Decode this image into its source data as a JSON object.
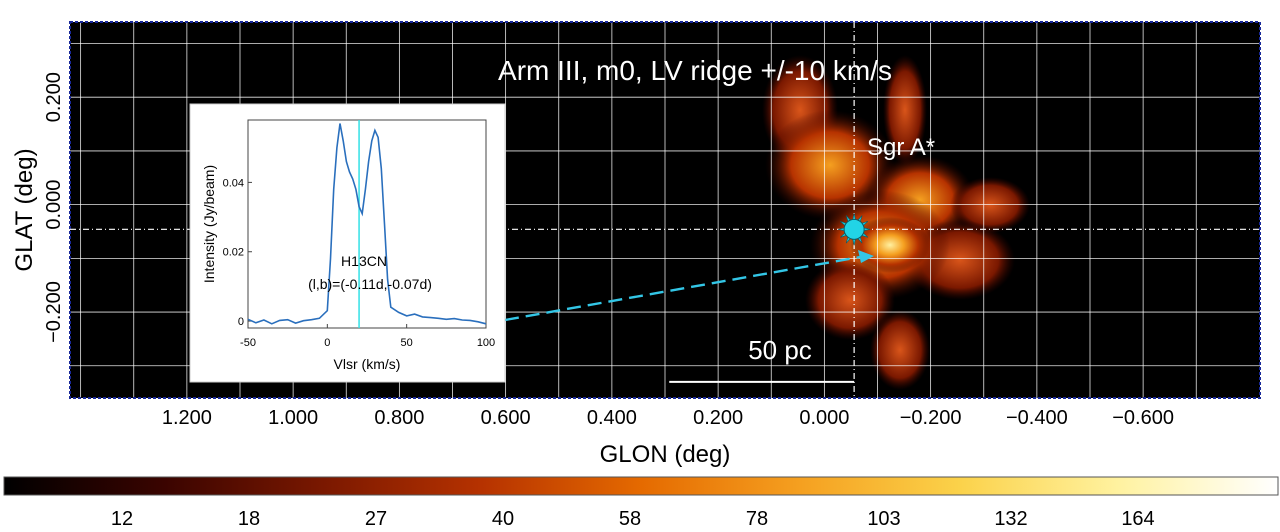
{
  "chart_data": {
    "type": "heatmap",
    "title": "Arm III, m0, LV ridge +/-10 km/s",
    "xlabel": "GLON (deg)",
    "ylabel": "GLAT (deg)",
    "xlim": [
      1.42,
      -0.82
    ],
    "ylim": [
      -0.36,
      0.34
    ],
    "x_ticks": [
      1.2,
      1.0,
      0.8,
      0.6,
      0.4,
      0.2,
      0.0,
      -0.2,
      -0.4,
      -0.6
    ],
    "x_tick_labels": [
      "1.200",
      "1.000",
      "0.800",
      "0.600",
      "0.400",
      "0.200",
      "0.000",
      "−0.200",
      "−0.400",
      "−0.600"
    ],
    "y_ticks": [
      0.2,
      0.0,
      -0.2
    ],
    "y_tick_labels": [
      "0.200",
      "0.000",
      "−0.200"
    ],
    "grid": true,
    "source_label": "Sgr A*",
    "source_position": {
      "l": -0.056,
      "b": -0.046
    },
    "scale_bar": {
      "label": "50 pc",
      "l_start": 0.292,
      "l_end": -0.056,
      "b": -0.33
    },
    "colorbar": {
      "tick_labels": [
        "12",
        "18",
        "27",
        "40",
        "58",
        "78",
        "103",
        "132",
        "164"
      ],
      "colors": [
        "#000000",
        "#3a0400",
        "#7a1800",
        "#b63200",
        "#e56a00",
        "#f5a020",
        "#fbd24a",
        "#fff2a0",
        "#ffffff"
      ]
    },
    "inset": {
      "type": "line",
      "label": "H13CN",
      "position_label": "(l,b)=(-0.11d,-0.07d)",
      "xlabel": "Vlsr (km/s)",
      "ylabel": "Intensity (Jy/beam)",
      "xlim": [
        -50,
        100
      ],
      "ylim": [
        -0.002,
        0.058
      ],
      "x_ticks": [
        -50,
        0,
        50,
        100
      ],
      "y_ticks": [
        0,
        0.02,
        0.04
      ],
      "y_tick_labels": [
        "0",
        "0.02",
        "0.04"
      ],
      "marker_velocity": 20,
      "x": [
        -50,
        -45,
        -40,
        -35,
        -30,
        -25,
        -20,
        -15,
        -10,
        -5,
        0,
        2,
        4,
        6,
        8,
        10,
        12,
        14,
        16,
        18,
        20,
        22,
        24,
        26,
        28,
        30,
        32,
        34,
        36,
        38,
        40,
        45,
        50,
        55,
        60,
        65,
        70,
        75,
        80,
        85,
        90,
        95,
        100
      ],
      "y": [
        0.0005,
        -0.0005,
        0.0003,
        -0.0008,
        0.0002,
        0.0004,
        -0.0006,
        0.0001,
        0.0004,
        0.0008,
        0.003,
        0.018,
        0.038,
        0.05,
        0.057,
        0.052,
        0.046,
        0.043,
        0.041,
        0.038,
        0.033,
        0.031,
        0.038,
        0.046,
        0.052,
        0.055,
        0.053,
        0.044,
        0.028,
        0.012,
        0.004,
        0.0025,
        0.0015,
        0.002,
        0.0012,
        0.001,
        0.0008,
        0.0005,
        0.0007,
        0.0003,
        0.0002,
        -0.0002,
        -0.0008
      ]
    }
  }
}
